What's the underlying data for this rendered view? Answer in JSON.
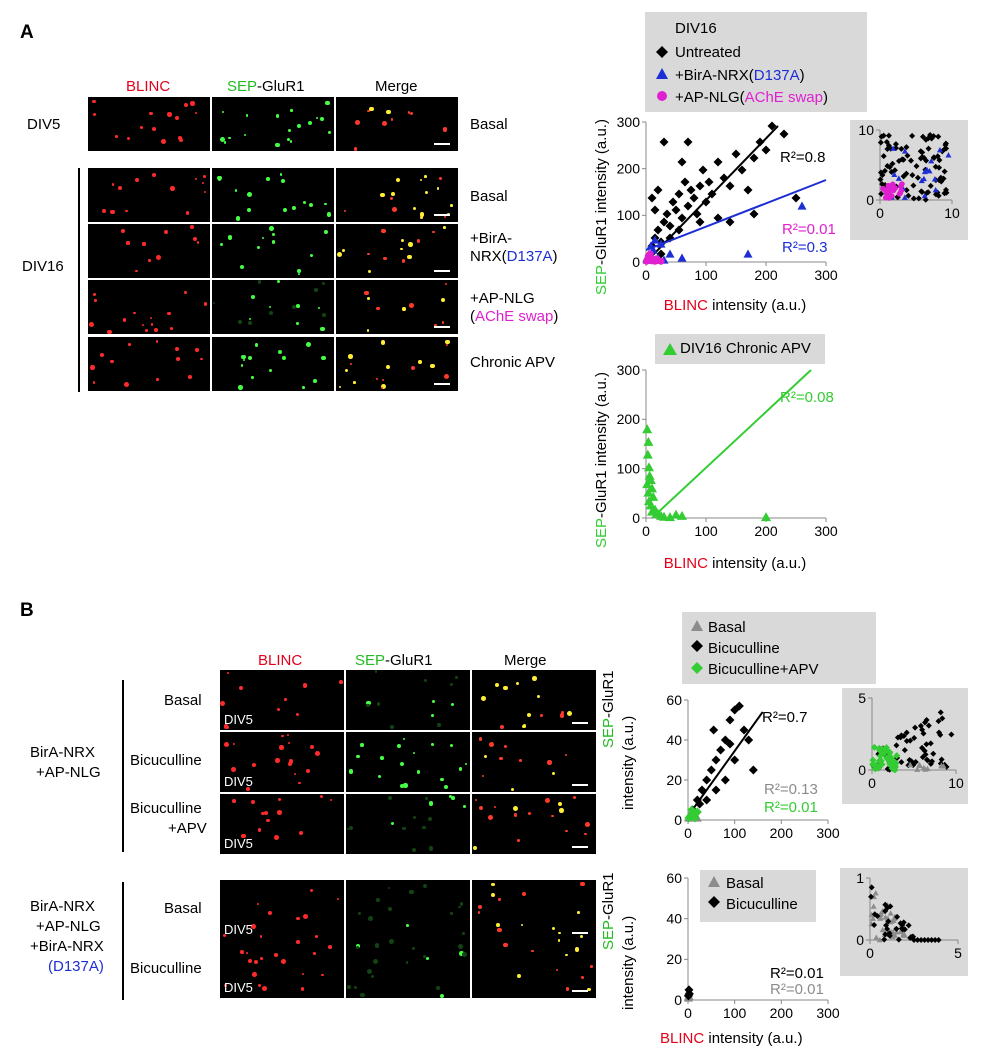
{
  "panelA": {
    "letter": "A",
    "col_headers": {
      "c1": "BLINC",
      "c2a": "SEP",
      "c2b": "-GluR1",
      "c3": "Merge"
    },
    "rows": [
      {
        "id": "div5-basal",
        "label": "Basal"
      },
      {
        "id": "div16-basal",
        "label": "Basal"
      },
      {
        "id": "div16-birA",
        "label1": "+BirA-",
        "label2a": "NRX(",
        "label2b": "D137A",
        "label2c": ")"
      },
      {
        "id": "div16-apnlg",
        "label1": "+AP-NLG",
        "label2a": "(",
        "label2b": "AChE swap",
        "label2c": ")"
      },
      {
        "id": "div16-apv",
        "label": "Chronic APV"
      }
    ],
    "group_labels": {
      "div5": "DIV5",
      "div16": "DIV16"
    },
    "legend": {
      "title": "DIV16",
      "untreated": "Untreated",
      "birA_a": "+BirA-NRX(",
      "birA_b": "D137A",
      "birA_c": ")",
      "apnlg_a": "+AP-NLG(",
      "apnlg_b": "AChE swap",
      "apnlg_c": ")"
    },
    "legend2": "DIV16 Chronic APV"
  },
  "panelB": {
    "letter": "B",
    "col_headers": {
      "c1": "BLINC",
      "c2a": "SEP",
      "c2b": "-GluR1",
      "c3": "Merge"
    },
    "group1_label": [
      "BirA-NRX",
      "+AP-NLG"
    ],
    "group2_label": [
      "BirA-NRX",
      "+AP-NLG",
      "+BirA-NRX",
      "(D137A)"
    ],
    "rows": {
      "basal": "Basal",
      "bic": "Bicuculline",
      "bicapv_1": "Bicuculline",
      "bicapv_2": "+APV"
    },
    "div_tag": "DIV5",
    "legend1": {
      "basal": "Basal",
      "bic": "Bicuculline",
      "bicapv": "Bicuculline+APV"
    },
    "legend2": {
      "basal": "Basal",
      "bic": "Bicuculline"
    }
  },
  "axes": {
    "xlabel_a": "BLINC",
    "xlabel_b": " intensity (a.u.)",
    "ylabel_a": "SEP",
    "ylabel_b": "-GluR1 intensity (a.u.)",
    "ylabel_split_a": "SEP-GluR1",
    "ylabel_split_b": "intensity (a.u.)",
    "ylabel_split2": "SEP-GluR1",
    "ylabel_split2_b": "intensity (a.u.)"
  },
  "colors": {
    "black": "#000000",
    "blue": "#1c2ed4",
    "magenta": "#e020d0",
    "green": "#33cc33",
    "gray": "#8c8c8c",
    "red": "#e3001b"
  },
  "chart_data": [
    {
      "id": "A-main",
      "type": "scatter",
      "xlabel": "BLINC intensity (a.u.)",
      "ylabel": "SEP-GluR1 intensity (a.u.)",
      "xlim": [
        0,
        300
      ],
      "ylim": [
        0,
        350
      ],
      "xticks": [
        "0",
        "100",
        "200",
        "300"
      ],
      "yticks": [
        "0",
        "100",
        "200",
        "300"
      ],
      "series": [
        {
          "name": "Untreated",
          "marker": "diamond",
          "color": "#000000",
          "points": [
            [
              5,
              10
            ],
            [
              10,
              40
            ],
            [
              15,
              60
            ],
            [
              20,
              80
            ],
            [
              25,
              50
            ],
            [
              30,
              100
            ],
            [
              35,
              120
            ],
            [
              40,
              90
            ],
            [
              45,
              150
            ],
            [
              50,
              130
            ],
            [
              55,
              170
            ],
            [
              60,
              110
            ],
            [
              65,
              200
            ],
            [
              70,
              140
            ],
            [
              75,
              180
            ],
            [
              80,
              160
            ],
            [
              85,
              120
            ],
            [
              90,
              190
            ],
            [
              95,
              230
            ],
            [
              100,
              150
            ],
            [
              105,
              200
            ],
            [
              110,
              170
            ],
            [
              120,
              250
            ],
            [
              130,
              210
            ],
            [
              140,
              190
            ],
            [
              150,
              270
            ],
            [
              160,
              230
            ],
            [
              170,
              180
            ],
            [
              180,
              260
            ],
            [
              190,
              300
            ],
            [
              200,
              280
            ],
            [
              210,
              340
            ],
            [
              230,
              320
            ],
            [
              250,
              160
            ],
            [
              30,
              300
            ],
            [
              60,
              250
            ],
            [
              25,
              20
            ],
            [
              15,
              130
            ],
            [
              40,
              60
            ],
            [
              55,
              80
            ],
            [
              90,
              100
            ],
            [
              120,
              110
            ],
            [
              10,
              160
            ],
            [
              20,
              180
            ],
            [
              70,
              300
            ],
            [
              180,
              120
            ],
            [
              140,
              100
            ]
          ],
          "fit": {
            "x": [
              10,
              220
            ],
            "y": [
              15,
              340
            ]
          },
          "r2": "R²=0.8"
        },
        {
          "name": "+BirA-NRX(D137A)",
          "marker": "triangle",
          "color": "#1c2ed4",
          "points": [
            [
              2,
              5
            ],
            [
              5,
              20
            ],
            [
              8,
              40
            ],
            [
              12,
              30
            ],
            [
              15,
              55
            ],
            [
              20,
              10
            ],
            [
              25,
              45
            ],
            [
              30,
              5
            ],
            [
              40,
              20
            ],
            [
              60,
              10
            ],
            [
              170,
              20
            ],
            [
              260,
              140
            ]
          ],
          "fit": {
            "x": [
              0,
              300
            ],
            "y": [
              30,
              205
            ]
          },
          "r2": "R²=0.3"
        },
        {
          "name": "+AP-NLG(AChE swap)",
          "marker": "circle",
          "color": "#e020d0",
          "points": [
            [
              1,
              2
            ],
            [
              3,
              8
            ],
            [
              5,
              4
            ],
            [
              8,
              10
            ],
            [
              10,
              3
            ],
            [
              12,
              6
            ],
            [
              15,
              2
            ],
            [
              18,
              8
            ],
            [
              20,
              4
            ],
            [
              25,
              2
            ],
            [
              4,
              15
            ],
            [
              7,
              20
            ]
          ],
          "r2": "R²=0.01"
        }
      ]
    },
    {
      "id": "A-inset",
      "type": "scatter",
      "xlim": [
        0,
        10
      ],
      "ylim": [
        0,
        10
      ],
      "xticks": [
        "0",
        "10"
      ],
      "yticks": [
        "0",
        "10"
      ]
    },
    {
      "id": "A-apv",
      "type": "scatter",
      "xlabel": "BLINC intensity (a.u.)",
      "ylabel": "SEP-GluR1 intensity (a.u.)",
      "xlim": [
        0,
        300
      ],
      "ylim": [
        0,
        350
      ],
      "xticks": [
        "0",
        "100",
        "200",
        "300"
      ],
      "yticks": [
        "0",
        "100",
        "200",
        "300"
      ],
      "series": [
        {
          "name": "DIV16 Chronic APV",
          "marker": "triangle",
          "color": "#33cc33",
          "points": [
            [
              2,
              210
            ],
            [
              4,
              180
            ],
            [
              3,
              150
            ],
            [
              5,
              120
            ],
            [
              6,
              100
            ],
            [
              8,
              90
            ],
            [
              10,
              70
            ],
            [
              12,
              50
            ],
            [
              5,
              40
            ],
            [
              8,
              30
            ],
            [
              15,
              20
            ],
            [
              20,
              10
            ],
            [
              25,
              5
            ],
            [
              30,
              3
            ],
            [
              40,
              2
            ],
            [
              50,
              8
            ],
            [
              60,
              5
            ],
            [
              4,
              60
            ],
            [
              2,
              80
            ],
            [
              10,
              15
            ],
            [
              200,
              2
            ]
          ],
          "fit": {
            "x": [
              10,
              275
            ],
            "y": [
              0,
              350
            ]
          },
          "r2": "R²=0.08"
        }
      ]
    },
    {
      "id": "B-top",
      "type": "scatter",
      "ylabel": "SEP-GluR1 intensity (a.u.)",
      "xlim": [
        0,
        300
      ],
      "ylim": [
        0,
        60
      ],
      "xticks": [
        "0",
        "100",
        "200",
        "300"
      ],
      "yticks": [
        "0",
        "20",
        "40",
        "60"
      ],
      "series": [
        {
          "name": "Basal",
          "marker": "triangle",
          "color": "#8c8c8c",
          "points": [
            [
              2,
              1
            ],
            [
              5,
              3
            ],
            [
              8,
              2
            ],
            [
              10,
              5
            ],
            [
              15,
              2
            ],
            [
              20,
              1
            ]
          ],
          "r2": "R²=0.13"
        },
        {
          "name": "Bicuculline",
          "marker": "diamond",
          "color": "#000000",
          "points": [
            [
              10,
              5
            ],
            [
              20,
              10
            ],
            [
              30,
              15
            ],
            [
              40,
              20
            ],
            [
              50,
              25
            ],
            [
              60,
              30
            ],
            [
              70,
              35
            ],
            [
              80,
              40
            ],
            [
              90,
              50
            ],
            [
              100,
              55
            ],
            [
              110,
              57
            ],
            [
              120,
              45
            ],
            [
              130,
              40
            ],
            [
              60,
              15
            ],
            [
              40,
              10
            ],
            [
              25,
              8
            ],
            [
              15,
              3
            ],
            [
              80,
              20
            ],
            [
              100,
              30
            ],
            [
              140,
              25
            ],
            [
              55,
              45
            ],
            [
              90,
              38
            ]
          ],
          "fit": {
            "x": [
              0,
              160
            ],
            "y": [
              2,
              54
            ]
          },
          "r2": "R²=0.7"
        },
        {
          "name": "Bicuculline+APV",
          "marker": "diamond",
          "color": "#33cc33",
          "points": [
            [
              2,
              1
            ],
            [
              5,
              2
            ],
            [
              10,
              3
            ],
            [
              15,
              1
            ],
            [
              20,
              4
            ],
            [
              8,
              5
            ]
          ],
          "r2": "R²=0.01"
        }
      ]
    },
    {
      "id": "B-top-inset",
      "type": "scatter",
      "xlim": [
        0,
        10
      ],
      "ylim": [
        0,
        5
      ],
      "xticks": [
        "0",
        "10"
      ],
      "yticks": [
        "0",
        "5"
      ]
    },
    {
      "id": "B-bottom",
      "type": "scatter",
      "xlabel": "BLINC intensity (a.u.)",
      "ylabel": "SEP-GluR1 intensity (a.u.)",
      "xlim": [
        0,
        300
      ],
      "ylim": [
        0,
        60
      ],
      "xticks": [
        "0",
        "100",
        "200",
        "300"
      ],
      "yticks": [
        "0",
        "20",
        "40",
        "60"
      ],
      "series": [
        {
          "name": "Basal",
          "marker": "triangle",
          "color": "#8c8c8c",
          "points": [
            [
              1,
              1
            ],
            [
              2,
              2
            ],
            [
              1,
              4
            ]
          ],
          "r2": "R²=0.01"
        },
        {
          "name": "Bicuculline",
          "marker": "diamond",
          "color": "#000000",
          "points": [
            [
              1,
              2
            ],
            [
              2,
              5
            ],
            [
              3,
              3
            ]
          ],
          "r2": "R²=0.01"
        }
      ]
    },
    {
      "id": "B-bottom-inset",
      "type": "scatter",
      "xlim": [
        0,
        5
      ],
      "ylim": [
        0,
        1
      ],
      "xticks": [
        "0",
        "5"
      ],
      "yticks": [
        "0",
        "1"
      ]
    }
  ]
}
